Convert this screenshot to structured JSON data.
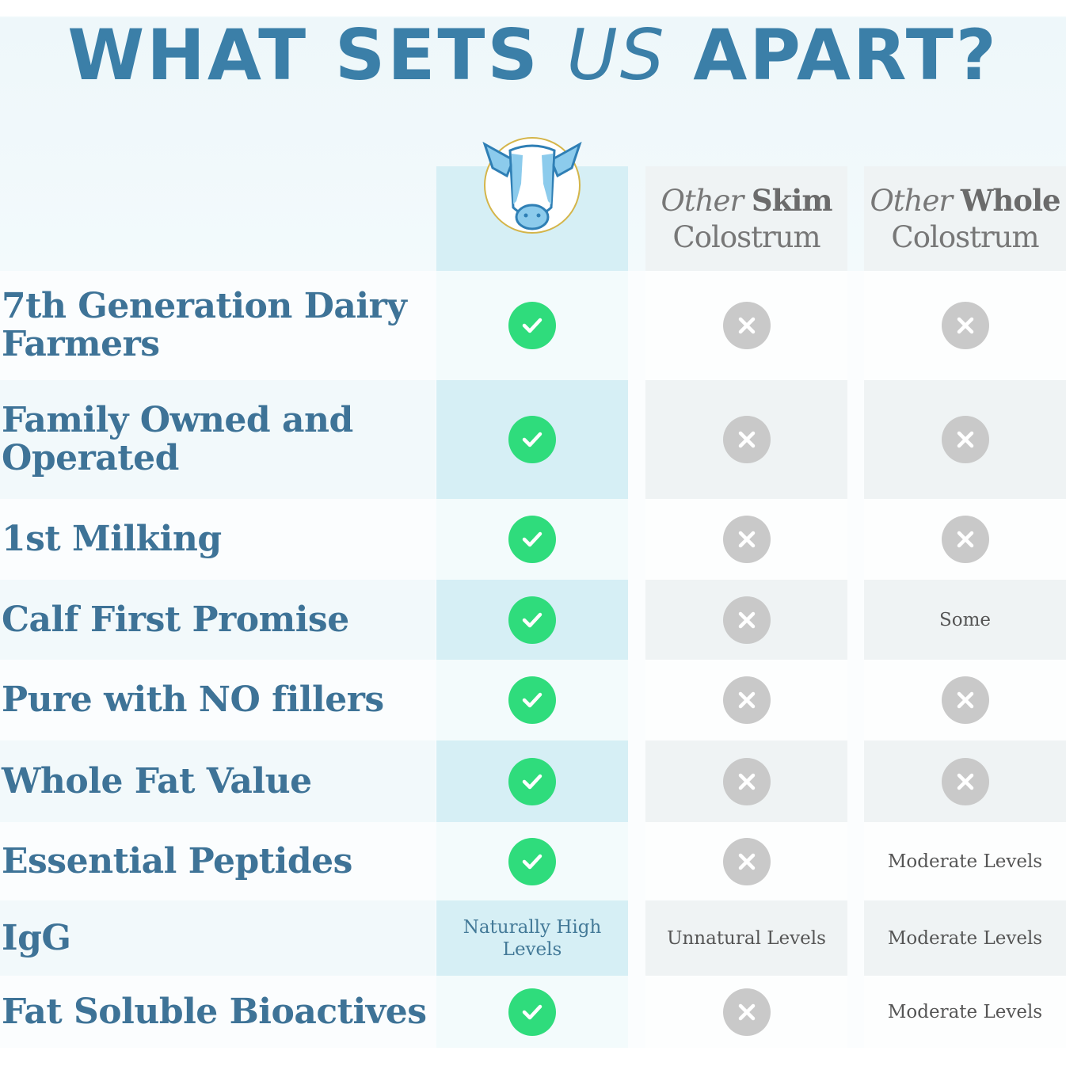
{
  "title": {
    "part1": "WHAT SETS ",
    "part2": "US",
    "part3": " APART?"
  },
  "colors": {
    "title": "#3b7fa8",
    "check": "#2fdc7c",
    "cross": "#c9c9c9",
    "ours_col": "#d6eff5",
    "other_col": "#eff3f4"
  },
  "columns": [
    {
      "logo": "cow-logo"
    },
    {
      "italic": "Other",
      "bold": "Skim",
      "line2": "Colostrum"
    },
    {
      "italic": "Other",
      "bold": "Whole",
      "line2": "Colostrum"
    }
  ],
  "rows": [
    {
      "label": "7th Generation Dairy Farmers",
      "cells": [
        "check-icon",
        "x-icon",
        "x-icon"
      ]
    },
    {
      "label": "Family Owned and Operated",
      "cells": [
        "check-icon",
        "x-icon",
        "x-icon"
      ]
    },
    {
      "label": "1st Milking",
      "cells": [
        "check-icon",
        "x-icon",
        "x-icon"
      ]
    },
    {
      "label": "Calf First Promise",
      "cells": [
        "check-icon",
        "x-icon",
        "Some"
      ]
    },
    {
      "label": "Pure with NO fillers",
      "cells": [
        "check-icon",
        "x-icon",
        "x-icon"
      ]
    },
    {
      "label": "Whole Fat Value",
      "cells": [
        "check-icon",
        "x-icon",
        "x-icon"
      ]
    },
    {
      "label": "Essential Peptides",
      "cells": [
        "check-icon",
        "x-icon",
        "Moderate Levels"
      ]
    },
    {
      "label": "IgG",
      "cells": [
        "Naturally High Levels",
        "Unnatural Levels",
        "Moderate Levels"
      ]
    },
    {
      "label": "Fat Soluble Bioactives",
      "cells": [
        "check-icon",
        "x-icon",
        "Moderate Levels"
      ]
    }
  ]
}
